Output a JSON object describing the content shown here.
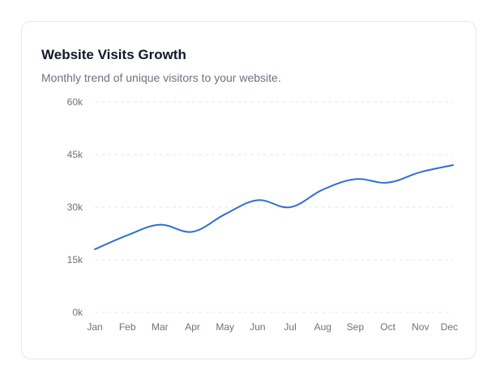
{
  "card": {
    "title": "Website Visits Growth",
    "subtitle": "Monthly trend of unique visitors to your website."
  },
  "chart_data": {
    "type": "line",
    "title": "Website Visits Growth",
    "subtitle": "Monthly trend of unique visitors to your website.",
    "xlabel": "",
    "ylabel": "",
    "categories": [
      "Jan",
      "Feb",
      "Mar",
      "Apr",
      "May",
      "Jun",
      "Jul",
      "Aug",
      "Sep",
      "Oct",
      "Nov",
      "Dec"
    ],
    "series": [
      {
        "values": [
          18000,
          22000,
          25000,
          23000,
          28000,
          32000,
          30000,
          35000,
          38000,
          37000,
          40000,
          42000
        ],
        "color": "#2f6fd1"
      }
    ],
    "ylim": [
      0,
      60000
    ],
    "yticks": [
      0,
      15000,
      30000,
      45000,
      60000
    ],
    "ytick_labels": [
      "0k",
      "15k",
      "30k",
      "45k",
      "60k"
    ],
    "grid": true,
    "grid_style": "dashed horizontal",
    "legend": "none",
    "curve": "smooth"
  }
}
